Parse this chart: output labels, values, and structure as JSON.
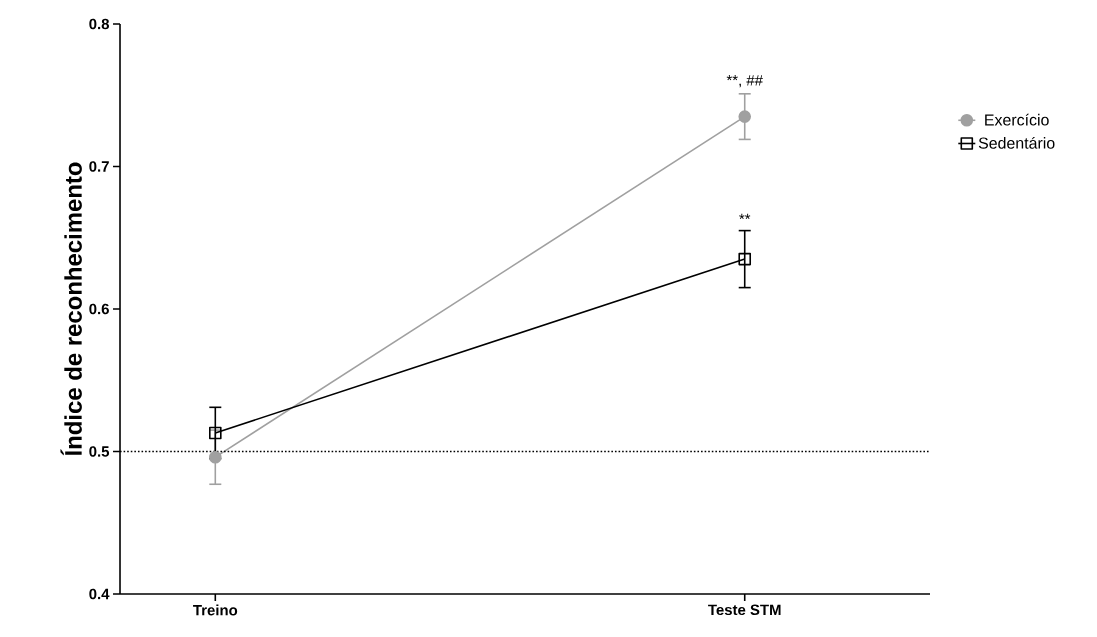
{
  "chart_data": {
    "type": "line",
    "ylabel": "Índice de reconhecimento",
    "categories": [
      "Treino",
      "Teste STM"
    ],
    "series": [
      {
        "name": "Exercício",
        "color": "#a0a0a0",
        "marker": "circle",
        "values": [
          0.496,
          0.735
        ],
        "errors": [
          0.019,
          0.016
        ]
      },
      {
        "name": "Sedentário",
        "color": "#000000",
        "marker": "square",
        "values": [
          0.513,
          0.635
        ],
        "errors": [
          0.018,
          0.02
        ]
      }
    ],
    "ylim": [
      0.4,
      0.8
    ],
    "yticks": [
      0.4,
      0.5,
      0.6,
      0.7,
      0.8
    ],
    "ref_lines": [
      {
        "axis": "y",
        "value": 0.5,
        "line_style": "dotted",
        "color": "#000000"
      }
    ],
    "annotations": [
      {
        "text": "**, ##",
        "x": "Teste STM",
        "y": 0.751
      },
      {
        "text": "**",
        "x": "Teste STM",
        "y": 0.655
      }
    ],
    "legend": "right",
    "grid": false,
    "line_style": "solid"
  }
}
